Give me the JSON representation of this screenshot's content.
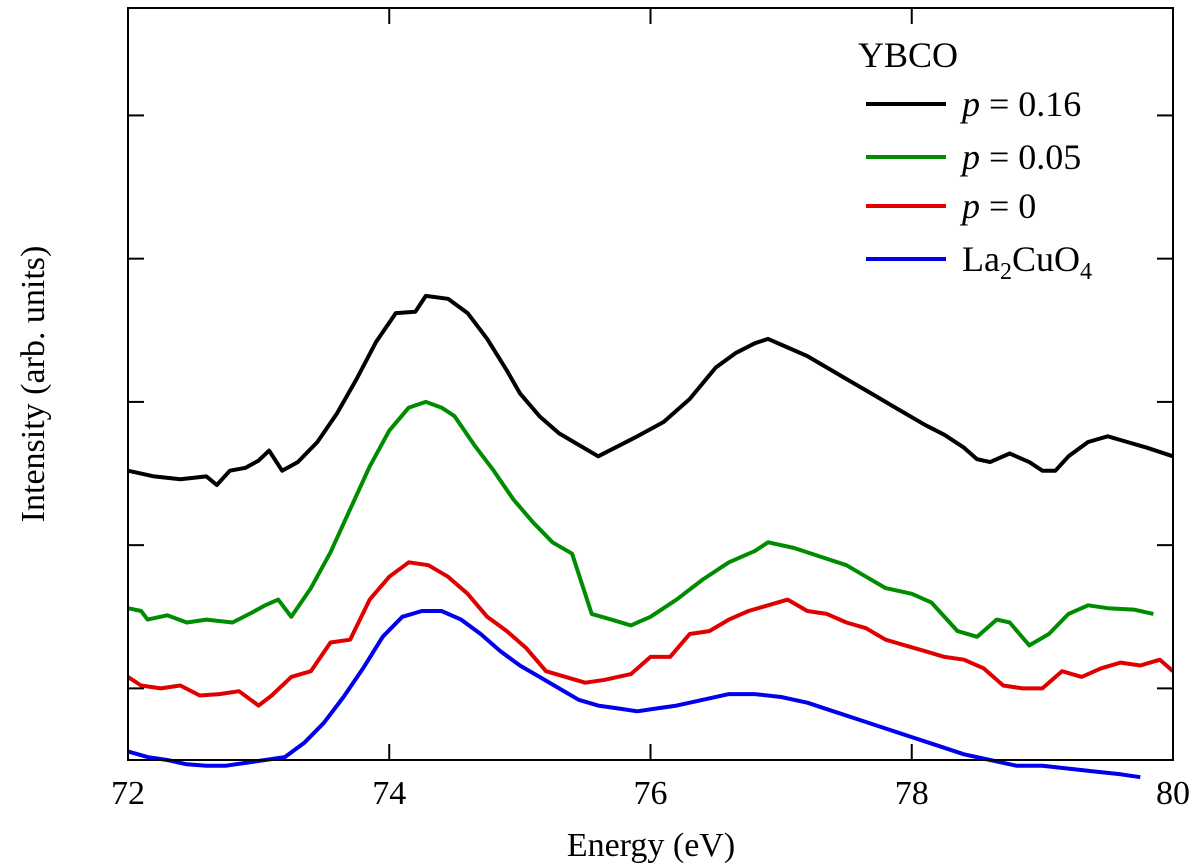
{
  "chart_data": {
    "type": "line",
    "xlabel": "Energy (eV)",
    "ylabel": "Intensity (arb. units)",
    "xlim": [
      72,
      80
    ],
    "ylim": [
      0,
      5.25
    ],
    "xticks": [
      "72",
      "74",
      "76",
      "78",
      "80"
    ],
    "yticks": [
      0.5,
      1.5,
      2.5,
      3.5,
      4.5
    ],
    "grid": false,
    "legend": {
      "placement": "top-right",
      "title": "YBCO",
      "entries": [
        {
          "italic": "p",
          "rest": " = 0.16"
        },
        {
          "italic": "p",
          "rest": " = 0.05"
        },
        {
          "italic": "p",
          "rest": " = 0"
        },
        {
          "base": "La",
          "sub1": "2",
          "mid": "CuO",
          "sub2": "4"
        }
      ]
    },
    "series": [
      {
        "color": "#000000",
        "points": [
          [
            72.0,
            2.02
          ],
          [
            72.2,
            1.98
          ],
          [
            72.4,
            1.96
          ],
          [
            72.6,
            1.98
          ],
          [
            72.68,
            1.92
          ],
          [
            72.78,
            2.02
          ],
          [
            72.9,
            2.04
          ],
          [
            73.0,
            2.09
          ],
          [
            73.08,
            2.16
          ],
          [
            73.18,
            2.02
          ],
          [
            73.3,
            2.08
          ],
          [
            73.45,
            2.22
          ],
          [
            73.6,
            2.42
          ],
          [
            73.75,
            2.66
          ],
          [
            73.9,
            2.92
          ],
          [
            74.05,
            3.12
          ],
          [
            74.2,
            3.13
          ],
          [
            74.28,
            3.24
          ],
          [
            74.45,
            3.22
          ],
          [
            74.6,
            3.12
          ],
          [
            74.75,
            2.94
          ],
          [
            74.9,
            2.72
          ],
          [
            75.0,
            2.56
          ],
          [
            75.15,
            2.4
          ],
          [
            75.3,
            2.28
          ],
          [
            75.45,
            2.2
          ],
          [
            75.6,
            2.12
          ],
          [
            75.75,
            2.19
          ],
          [
            75.9,
            2.26
          ],
          [
            76.1,
            2.36
          ],
          [
            76.3,
            2.52
          ],
          [
            76.5,
            2.74
          ],
          [
            76.65,
            2.84
          ],
          [
            76.8,
            2.91
          ],
          [
            76.9,
            2.94
          ],
          [
            77.05,
            2.88
          ],
          [
            77.2,
            2.82
          ],
          [
            77.35,
            2.74
          ],
          [
            77.5,
            2.66
          ],
          [
            77.65,
            2.58
          ],
          [
            77.8,
            2.5
          ],
          [
            77.95,
            2.42
          ],
          [
            78.1,
            2.34
          ],
          [
            78.25,
            2.27
          ],
          [
            78.4,
            2.18
          ],
          [
            78.5,
            2.1
          ],
          [
            78.6,
            2.08
          ],
          [
            78.75,
            2.14
          ],
          [
            78.9,
            2.08
          ],
          [
            79.0,
            2.02
          ],
          [
            79.1,
            2.02
          ],
          [
            79.2,
            2.12
          ],
          [
            79.35,
            2.22
          ],
          [
            79.5,
            2.26
          ],
          [
            79.65,
            2.22
          ],
          [
            79.8,
            2.18
          ],
          [
            80.0,
            2.12
          ]
        ]
      },
      {
        "color": "#008c00",
        "points": [
          [
            72.0,
            1.06
          ],
          [
            72.1,
            1.04
          ],
          [
            72.15,
            0.98
          ],
          [
            72.3,
            1.01
          ],
          [
            72.45,
            0.96
          ],
          [
            72.6,
            0.98
          ],
          [
            72.8,
            0.96
          ],
          [
            72.95,
            1.03
          ],
          [
            73.05,
            1.08
          ],
          [
            73.15,
            1.12
          ],
          [
            73.25,
            1.0
          ],
          [
            73.4,
            1.2
          ],
          [
            73.55,
            1.45
          ],
          [
            73.7,
            1.75
          ],
          [
            73.85,
            2.05
          ],
          [
            74.0,
            2.3
          ],
          [
            74.15,
            2.46
          ],
          [
            74.28,
            2.5
          ],
          [
            74.4,
            2.46
          ],
          [
            74.5,
            2.4
          ],
          [
            74.65,
            2.2
          ],
          [
            74.8,
            2.02
          ],
          [
            74.95,
            1.82
          ],
          [
            75.1,
            1.66
          ],
          [
            75.25,
            1.52
          ],
          [
            75.4,
            1.44
          ],
          [
            75.55,
            1.02
          ],
          [
            75.7,
            0.98
          ],
          [
            75.85,
            0.94
          ],
          [
            76.0,
            1.0
          ],
          [
            76.2,
            1.12
          ],
          [
            76.4,
            1.26
          ],
          [
            76.6,
            1.38
          ],
          [
            76.8,
            1.46
          ],
          [
            76.9,
            1.52
          ],
          [
            77.1,
            1.48
          ],
          [
            77.3,
            1.42
          ],
          [
            77.5,
            1.36
          ],
          [
            77.65,
            1.28
          ],
          [
            77.8,
            1.2
          ],
          [
            78.0,
            1.16
          ],
          [
            78.15,
            1.1
          ],
          [
            78.35,
            0.9
          ],
          [
            78.5,
            0.86
          ],
          [
            78.65,
            0.98
          ],
          [
            78.75,
            0.96
          ],
          [
            78.9,
            0.8
          ],
          [
            79.05,
            0.88
          ],
          [
            79.2,
            1.02
          ],
          [
            79.35,
            1.08
          ],
          [
            79.5,
            1.06
          ],
          [
            79.7,
            1.05
          ],
          [
            79.85,
            1.02
          ]
        ]
      },
      {
        "color": "#e00000",
        "points": [
          [
            72.0,
            0.58
          ],
          [
            72.1,
            0.52
          ],
          [
            72.25,
            0.5
          ],
          [
            72.4,
            0.52
          ],
          [
            72.55,
            0.45
          ],
          [
            72.7,
            0.46
          ],
          [
            72.85,
            0.48
          ],
          [
            73.0,
            0.38
          ],
          [
            73.1,
            0.45
          ],
          [
            73.25,
            0.58
          ],
          [
            73.4,
            0.62
          ],
          [
            73.55,
            0.82
          ],
          [
            73.7,
            0.84
          ],
          [
            73.85,
            1.12
          ],
          [
            74.0,
            1.28
          ],
          [
            74.15,
            1.38
          ],
          [
            74.3,
            1.36
          ],
          [
            74.45,
            1.28
          ],
          [
            74.6,
            1.16
          ],
          [
            74.75,
            1.0
          ],
          [
            74.9,
            0.9
          ],
          [
            75.05,
            0.78
          ],
          [
            75.2,
            0.62
          ],
          [
            75.35,
            0.58
          ],
          [
            75.5,
            0.54
          ],
          [
            75.65,
            0.56
          ],
          [
            75.85,
            0.6
          ],
          [
            76.0,
            0.72
          ],
          [
            76.15,
            0.72
          ],
          [
            76.3,
            0.88
          ],
          [
            76.45,
            0.9
          ],
          [
            76.6,
            0.98
          ],
          [
            76.75,
            1.04
          ],
          [
            76.9,
            1.08
          ],
          [
            77.05,
            1.12
          ],
          [
            77.2,
            1.04
          ],
          [
            77.35,
            1.02
          ],
          [
            77.5,
            0.96
          ],
          [
            77.65,
            0.92
          ],
          [
            77.8,
            0.84
          ],
          [
            77.95,
            0.8
          ],
          [
            78.1,
            0.76
          ],
          [
            78.25,
            0.72
          ],
          [
            78.4,
            0.7
          ],
          [
            78.55,
            0.64
          ],
          [
            78.7,
            0.52
          ],
          [
            78.85,
            0.5
          ],
          [
            79.0,
            0.5
          ],
          [
            79.15,
            0.62
          ],
          [
            79.3,
            0.58
          ],
          [
            79.45,
            0.64
          ],
          [
            79.6,
            0.68
          ],
          [
            79.75,
            0.66
          ],
          [
            79.9,
            0.7
          ],
          [
            80.0,
            0.62
          ]
        ]
      },
      {
        "color": "#0000ee",
        "points": [
          [
            72.0,
            0.06
          ],
          [
            72.15,
            0.02
          ],
          [
            72.3,
            0.0
          ],
          [
            72.45,
            -0.03
          ],
          [
            72.6,
            -0.04
          ],
          [
            72.75,
            -0.04
          ],
          [
            72.9,
            -0.02
          ],
          [
            73.05,
            0.0
          ],
          [
            73.2,
            0.02
          ],
          [
            73.35,
            0.12
          ],
          [
            73.5,
            0.26
          ],
          [
            73.65,
            0.44
          ],
          [
            73.8,
            0.64
          ],
          [
            73.95,
            0.86
          ],
          [
            74.1,
            1.0
          ],
          [
            74.25,
            1.04
          ],
          [
            74.4,
            1.04
          ],
          [
            74.55,
            0.98
          ],
          [
            74.7,
            0.88
          ],
          [
            74.85,
            0.76
          ],
          [
            75.0,
            0.66
          ],
          [
            75.15,
            0.58
          ],
          [
            75.3,
            0.5
          ],
          [
            75.45,
            0.42
          ],
          [
            75.6,
            0.38
          ],
          [
            75.75,
            0.36
          ],
          [
            75.9,
            0.34
          ],
          [
            76.05,
            0.36
          ],
          [
            76.2,
            0.38
          ],
          [
            76.4,
            0.42
          ],
          [
            76.6,
            0.46
          ],
          [
            76.8,
            0.46
          ],
          [
            77.0,
            0.44
          ],
          [
            77.2,
            0.4
          ],
          [
            77.4,
            0.34
          ],
          [
            77.6,
            0.28
          ],
          [
            77.8,
            0.22
          ],
          [
            78.0,
            0.16
          ],
          [
            78.2,
            0.1
          ],
          [
            78.4,
            0.04
          ],
          [
            78.6,
            0.0
          ],
          [
            78.8,
            -0.04
          ],
          [
            79.0,
            -0.04
          ],
          [
            79.2,
            -0.06
          ],
          [
            79.4,
            -0.08
          ],
          [
            79.6,
            -0.1
          ],
          [
            79.75,
            -0.12
          ]
        ]
      }
    ]
  }
}
